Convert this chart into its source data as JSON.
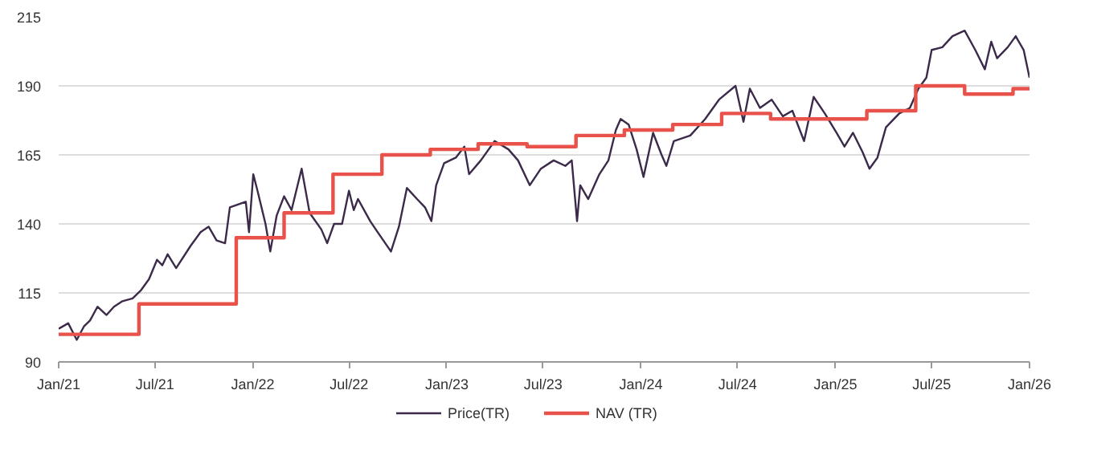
{
  "chart_data": {
    "type": "line",
    "legend": "bottom",
    "grid": "y",
    "line_style": "solid",
    "marker": "none",
    "xlim": [
      "2021-01-01",
      "2026-01-01"
    ],
    "xticks": [
      {
        "value": "2021-01-01",
        "label": "Jan/21"
      },
      {
        "value": "2021-07-01",
        "label": "Jul/21"
      },
      {
        "value": "2022-01-01",
        "label": "Jan/22"
      },
      {
        "value": "2022-07-01",
        "label": "Jul/22"
      },
      {
        "value": "2023-01-01",
        "label": "Jan/23"
      },
      {
        "value": "2023-07-01",
        "label": "Jul/23"
      },
      {
        "value": "2024-01-01",
        "label": "Jan/24"
      },
      {
        "value": "2024-07-01",
        "label": "Jul/24"
      },
      {
        "value": "2025-01-01",
        "label": "Jan/25"
      },
      {
        "value": "2025-07-01",
        "label": "Jul/25"
      },
      {
        "value": "2026-01-01",
        "label": "Jan/26"
      }
    ],
    "ylim": [
      90,
      215
    ],
    "yticks": [
      90,
      115,
      140,
      165,
      190,
      215
    ],
    "series": [
      {
        "name": "Price(TR)",
        "color": "#3b2a4a",
        "x": [
          "2021-01-01",
          "2021-01-19",
          "2021-02-04",
          "2021-02-18",
          "2021-03-01",
          "2021-03-15",
          "2021-04-01",
          "2021-04-15",
          "2021-05-01",
          "2021-05-20",
          "2021-06-05",
          "2021-06-20",
          "2021-07-05",
          "2021-07-15",
          "2021-07-25",
          "2021-08-10",
          "2021-09-06",
          "2021-09-25",
          "2021-10-10",
          "2021-10-25",
          "2021-11-10",
          "2021-11-19",
          "2021-12-19",
          "2021-12-25",
          "2022-01-02",
          "2022-01-10",
          "2022-01-25",
          "2022-02-03",
          "2022-02-15",
          "2022-03-01",
          "2022-03-15",
          "2022-04-03",
          "2022-04-18",
          "2022-05-10",
          "2022-05-21",
          "2022-06-03",
          "2022-06-18",
          "2022-07-01",
          "2022-07-10",
          "2022-07-18",
          "2022-08-10",
          "2022-08-24",
          "2022-09-18",
          "2022-10-03",
          "2022-10-18",
          "2022-11-06",
          "2022-11-21",
          "2022-12-03",
          "2022-12-12",
          "2022-12-27",
          "2023-01-18",
          "2023-02-03",
          "2023-02-12",
          "2023-03-06",
          "2023-04-01",
          "2023-04-27",
          "2023-05-15",
          "2023-06-06",
          "2023-06-27",
          "2023-07-21",
          "2023-08-12",
          "2023-08-24",
          "2023-09-03",
          "2023-09-09",
          "2023-09-24",
          "2023-10-15",
          "2023-11-01",
          "2023-11-15",
          "2023-11-24",
          "2023-12-09",
          "2023-12-24",
          "2024-01-06",
          "2024-01-24",
          "2024-02-09",
          "2024-02-18",
          "2024-03-03",
          "2024-04-03",
          "2024-05-01",
          "2024-05-27",
          "2024-06-27",
          "2024-07-12",
          "2024-07-24",
          "2024-08-12",
          "2024-09-03",
          "2024-09-24",
          "2024-10-12",
          "2024-11-03",
          "2024-11-21",
          "2024-12-12",
          "2025-01-03",
          "2025-01-18",
          "2025-02-03",
          "2025-02-21",
          "2025-03-06",
          "2025-03-21",
          "2025-04-06",
          "2025-05-01",
          "2025-05-21",
          "2025-06-06",
          "2025-06-21",
          "2025-07-01",
          "2025-07-21",
          "2025-08-09",
          "2025-09-01",
          "2025-09-21",
          "2025-10-09",
          "2025-10-21",
          "2025-11-01",
          "2025-11-21",
          "2025-12-06",
          "2025-12-21",
          "2026-01-01"
        ],
        "values": [
          102,
          104,
          98,
          103,
          105,
          110,
          107,
          110,
          112,
          113,
          116,
          120,
          127,
          125,
          129,
          124,
          132,
          137,
          139,
          134,
          133,
          146,
          148,
          137,
          158,
          152,
          140,
          130,
          143,
          150,
          145,
          160,
          144,
          138,
          133,
          140,
          140,
          152,
          145,
          149,
          141,
          137,
          130,
          139,
          153,
          149,
          146,
          141,
          154,
          162,
          164,
          168,
          158,
          163,
          170,
          167,
          163,
          154,
          160,
          163,
          161,
          163,
          141,
          154,
          149,
          158,
          163,
          174,
          178,
          176,
          167,
          157,
          173,
          165,
          161,
          170,
          172,
          178,
          185,
          190,
          177,
          189,
          182,
          185,
          179,
          181,
          170,
          186,
          180,
          173,
          168,
          173,
          166,
          160,
          164,
          175,
          180,
          182,
          189,
          193,
          203,
          204,
          208,
          210,
          203,
          196,
          206,
          200,
          204,
          208,
          203,
          193
        ]
      },
      {
        "name": "NAV (TR)",
        "color": "#e8524a",
        "type": "step",
        "x": [
          "2021-01-01",
          "2021-06-01",
          "2021-12-01",
          "2022-03-01",
          "2022-06-01",
          "2022-09-01",
          "2022-12-01",
          "2023-03-01",
          "2023-06-01",
          "2023-09-01",
          "2023-12-01",
          "2024-03-01",
          "2024-06-01",
          "2024-09-01",
          "2024-12-01",
          "2025-03-01",
          "2025-06-01",
          "2025-09-01",
          "2025-12-01",
          "2026-01-01"
        ],
        "values": [
          100,
          111,
          135,
          144,
          158,
          165,
          167,
          169,
          168,
          172,
          174,
          176,
          180,
          178,
          178,
          181,
          190,
          187,
          189,
          189
        ]
      }
    ]
  }
}
